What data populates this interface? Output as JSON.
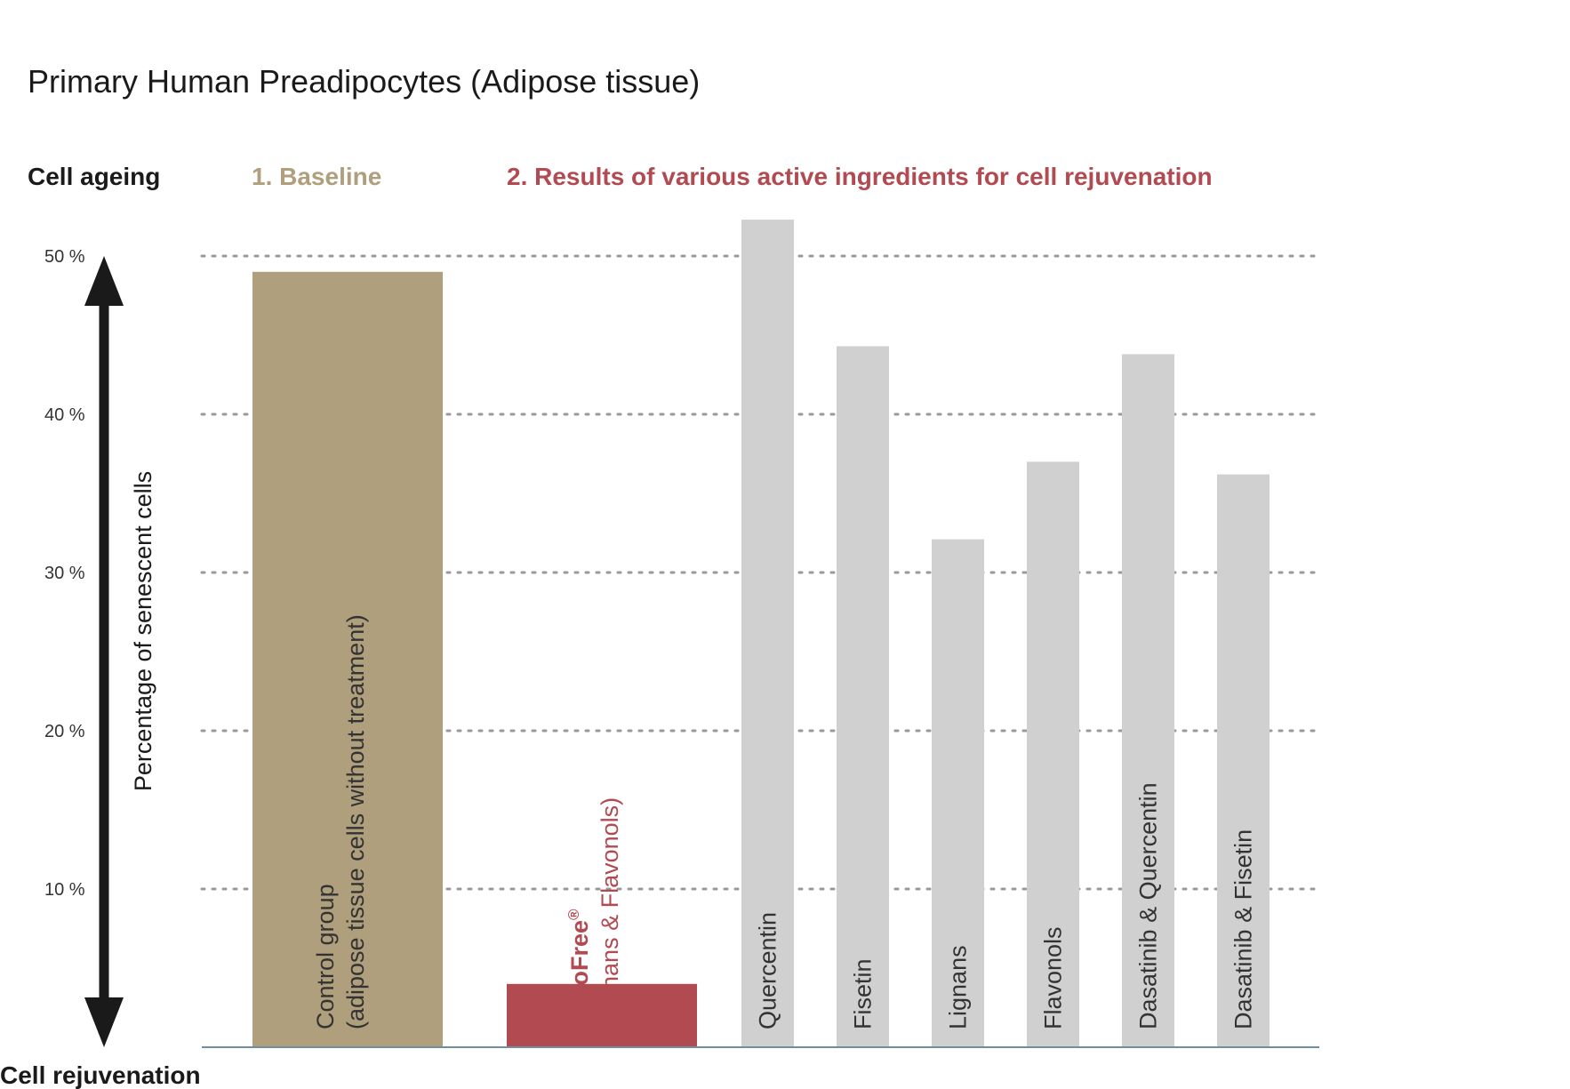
{
  "chart_data": {
    "type": "bar",
    "title": "Primary Human Preadipocytes (Adipose tissue)",
    "ylabel": "Percentage of senescent cells",
    "axis_top_label": "Cell ageing",
    "axis_bottom_label": "Cell rejuvenation",
    "group_headers": [
      {
        "text": "1. Baseline",
        "color": "#b09f7c"
      },
      {
        "text": "2. Results of various active ingredients for cell rejuvenation",
        "color": "#b14a51"
      }
    ],
    "ylim": [
      0,
      50
    ],
    "yticks": [
      10,
      20,
      30,
      40,
      50
    ],
    "ytick_labels": [
      "10 %",
      "20 %",
      "30 %",
      "40 %",
      "50 %"
    ],
    "grid": "dotted horizontal",
    "bars": [
      {
        "label": "Control group",
        "label2": "(adipose tissue cells without treatment)",
        "value": 49.0,
        "color": "#b09f7c",
        "text_color": "#333333"
      },
      {
        "label": "SenoFree",
        "sup": "®",
        "label2": "(Lignans & Flavonols)",
        "value": 4.0,
        "color": "#b14a51",
        "text_color": "#b14a51"
      },
      {
        "label": "Quercentin",
        "value": 52.3,
        "color": "#d0d0d0",
        "text_color": "#333333"
      },
      {
        "label": "Fisetin",
        "value": 44.3,
        "color": "#d0d0d0",
        "text_color": "#333333"
      },
      {
        "label": "Lignans",
        "value": 32.1,
        "color": "#d0d0d0",
        "text_color": "#333333"
      },
      {
        "label": "Flavonols",
        "value": 37.0,
        "color": "#d0d0d0",
        "text_color": "#333333"
      },
      {
        "label": "Dasatinib & Quercentin",
        "value": 43.8,
        "color": "#d0d0d0",
        "text_color": "#333333"
      },
      {
        "label": "Dasatinib & Fisetin",
        "value": 36.2,
        "color": "#d0d0d0",
        "text_color": "#333333"
      }
    ]
  }
}
